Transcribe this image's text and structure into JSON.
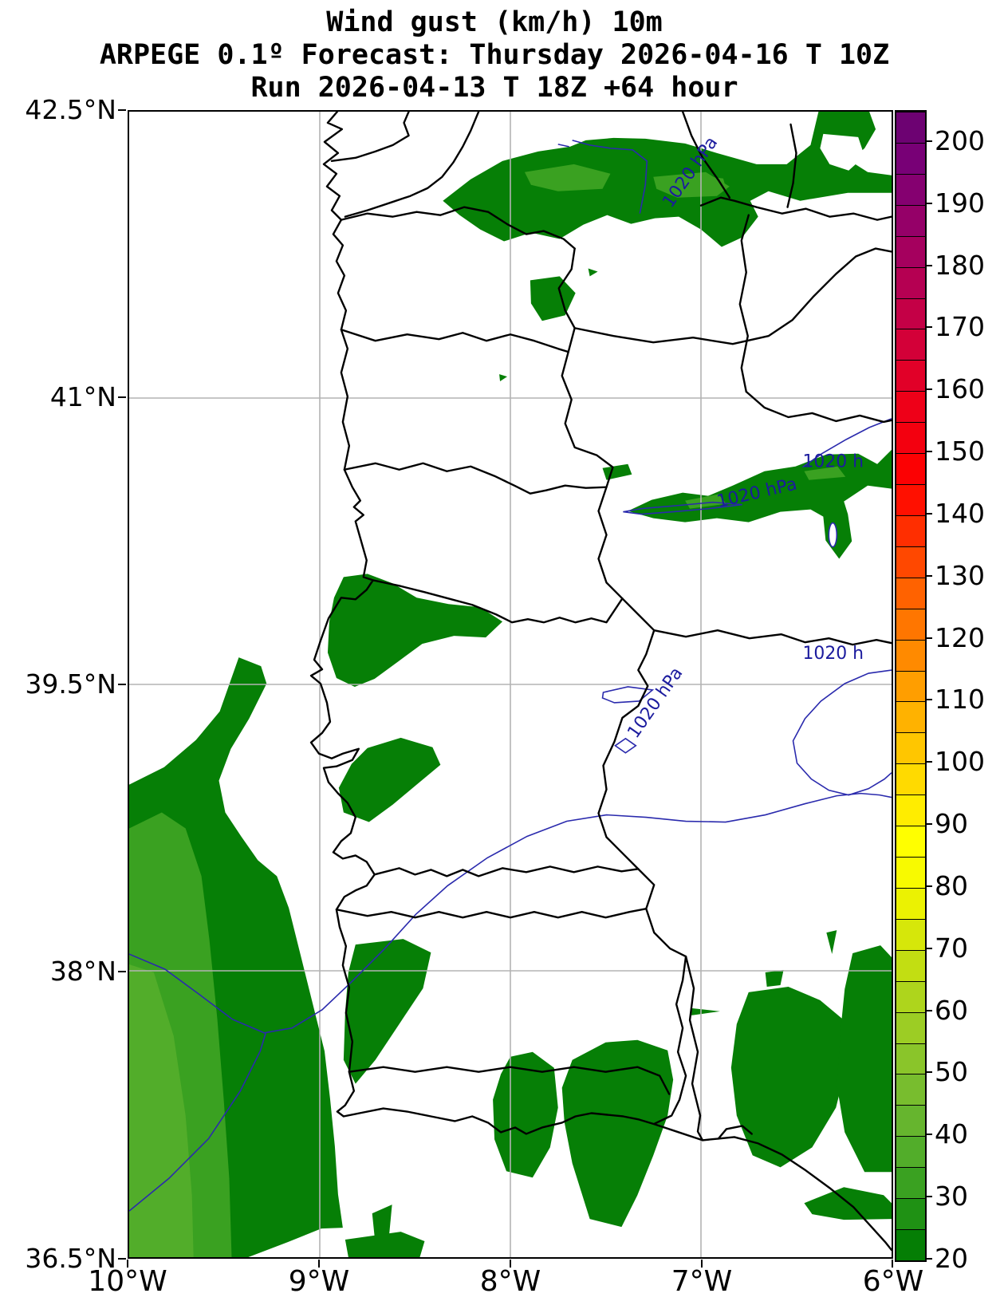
{
  "figure": {
    "title_line1": "Wind gust (km/h) 10m",
    "title_line2": "ARPEGE 0.1º Forecast: Thursday 2026-04-16 T 10Z",
    "title_line3": "Run 2026-04-13 T 18Z +64 hour"
  },
  "map": {
    "kind": "filled-contour wind gust forecast map with sea-level pressure isobars",
    "region": "Portugal and western Spain",
    "y_axis": {
      "labels": [
        "42.5°N",
        "41°N",
        "39.5°N",
        "38°N",
        "36.5°N"
      ],
      "lat_range": [
        36.5,
        42.5
      ]
    },
    "x_axis": {
      "labels": [
        "10°W",
        "9°W",
        "8°W",
        "7°W",
        "6°W"
      ],
      "lon_range": [
        -10,
        -6
      ]
    },
    "isobar_value_hpa": 1020,
    "isobar_labels": [
      "1020 hPa",
      "1020 hPa",
      "1020 hPa",
      "1020 h",
      "1020 h"
    ],
    "colors": {
      "grid": "#b3b3b3",
      "coast_and_borders": "#000000",
      "isobar": "#2a2aad",
      "isobar_text": "#1b1b9e",
      "gust_20_25": "#067f06",
      "gust_25_35": "#3aa121",
      "gust_35_40": "#52ad2a"
    },
    "shading_summary": "Green shading (20–40 km/h gusts) over the Atlantic southwest of Portugal, a band along the northern Portugal/Spain border, patches in central Portugal near the coast, and across the Algarve / Gulf of Cádiz in the south."
  },
  "colorbar": {
    "unit": "km/h",
    "min": 20,
    "max": 205,
    "segment_step": 5,
    "tick_labels": [
      "20",
      "30",
      "40",
      "50",
      "60",
      "70",
      "80",
      "90",
      "100",
      "110",
      "120",
      "130",
      "140",
      "150",
      "160",
      "170",
      "180",
      "190",
      "200"
    ],
    "segment_colors": [
      "#057e05",
      "#1f9114",
      "#3aa121",
      "#52ad2a",
      "#66b52e",
      "#78bd2e",
      "#8ac52a",
      "#9ccd24",
      "#aed51c",
      "#c2de12",
      "#d6e70a",
      "#ebf202",
      "#f8fa00",
      "#ffff00",
      "#ffed00",
      "#ffda00",
      "#ffc600",
      "#ffb200",
      "#ff9e00",
      "#ff8a00",
      "#ff7600",
      "#ff6200",
      "#ff4800",
      "#ff2e00",
      "#ff1000",
      "#fc0103",
      "#f3000f",
      "#ee0018",
      "#e10028",
      "#d30038",
      "#c40046",
      "#b50052",
      "#a5005e",
      "#950068",
      "#850070",
      "#780076",
      "#6d0272"
    ]
  }
}
